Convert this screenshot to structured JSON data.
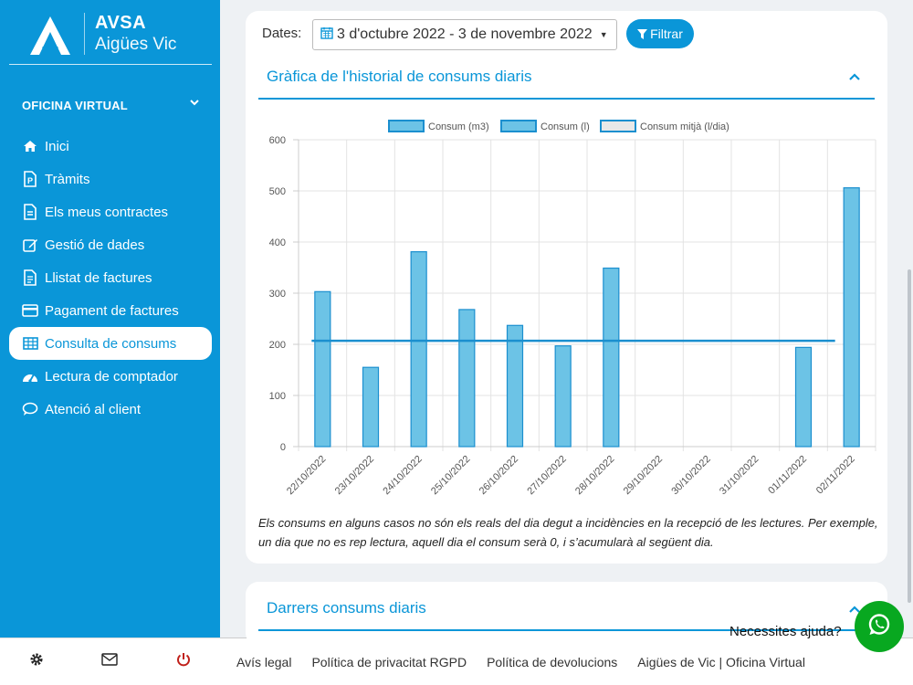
{
  "brand": {
    "name": "AVSA",
    "subtitle": "Aigües Vic"
  },
  "sidebar": {
    "section_title": "OFICINA VIRTUAL",
    "items": [
      {
        "label": "Inici",
        "icon": "home-icon"
      },
      {
        "label": "Tràmits",
        "icon": "document-p-icon"
      },
      {
        "label": "Els meus contractes",
        "icon": "file-icon"
      },
      {
        "label": "Gestió de dades",
        "icon": "edit-icon"
      },
      {
        "label": "Llistat de factures",
        "icon": "invoice-icon"
      },
      {
        "label": "Pagament de factures",
        "icon": "credit-card-icon"
      },
      {
        "label": "Consulta de consums",
        "icon": "table-icon",
        "active": true
      },
      {
        "label": "Lectura de comptador",
        "icon": "gauge-icon"
      },
      {
        "label": "Atenció al client",
        "icon": "chat-icon"
      }
    ]
  },
  "filters": {
    "dates_label": "Dates:",
    "date_range": "3 d'octubre 2022 - 3 de novembre 2022",
    "filter_button": "Filtrar"
  },
  "chart_panel": {
    "title": "Gràfica de l'historial de consums diaris",
    "note": "Els consums en alguns casos no són els reals del dia degut a incidències en la recepció de les lectures. Per exemple, un dia que no es rep lectura, aquell dia el consum serà 0, i s’acumularà al següent dia."
  },
  "chart_data": {
    "type": "bar",
    "categories": [
      "22/10/2022",
      "23/10/2022",
      "24/10/2022",
      "25/10/2022",
      "26/10/2022",
      "27/10/2022",
      "28/10/2022",
      "29/10/2022",
      "30/10/2022",
      "31/10/2022",
      "01/11/2022",
      "02/11/2022"
    ],
    "series": [
      {
        "name": "Consum (m3)",
        "values": [
          0.303,
          0.155,
          0.381,
          0.268,
          0.237,
          0.197,
          0.349,
          0,
          0,
          0,
          0.194,
          0.506
        ]
      },
      {
        "name": "Consum (l)",
        "values": [
          303,
          155,
          381,
          268,
          237,
          197,
          349,
          0,
          0,
          0,
          194,
          506
        ]
      },
      {
        "name": "Consum mitjà (l/dia)",
        "type": "line",
        "values": [
          207,
          207,
          207,
          207,
          207,
          207,
          207,
          207,
          207,
          207,
          207,
          207
        ]
      }
    ],
    "ylim": [
      0,
      600
    ],
    "yticks": [
      0,
      100,
      200,
      300,
      400,
      500,
      600
    ],
    "grid": true,
    "legend_position": "top",
    "colors": {
      "bar_fill": "#6cc3e6",
      "bar_stroke": "#1b8fcf",
      "line": "#1b8fcf"
    }
  },
  "last_panel": {
    "title": "Darrers consums diaris"
  },
  "help": {
    "text": "Necessites ajuda?"
  },
  "footer": {
    "links": [
      "Avís legal",
      "Política de privacitat RGPD",
      "Política de devolucions",
      "Aigües de Vic | Oficina Virtual"
    ]
  },
  "colors": {
    "primary": "#0a96d8",
    "whatsapp": "#08a820",
    "power": "#c0201a"
  }
}
